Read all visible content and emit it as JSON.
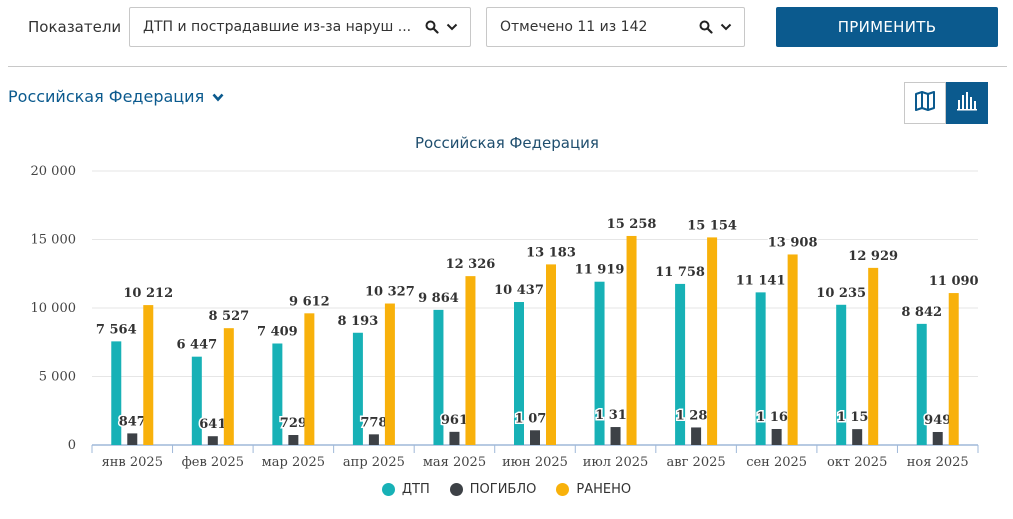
{
  "filters": {
    "indicators_label": "Показатели",
    "indicator_value": "ДТП и пострадавшие из-за наруш ...",
    "selection_value": "Отмечено 11 из 142",
    "apply_label": "ПРИМЕНИТЬ"
  },
  "region": {
    "label": "Российская Федерация"
  },
  "view_toggle": {
    "map_icon": "map-icon",
    "bar_icon": "bar-chart-icon",
    "active": "bar"
  },
  "colors": {
    "dtp": "#17b1b6",
    "pogiblo": "#3d4146",
    "raneno": "#f8b10b",
    "accent": "#0b5a8e"
  },
  "chart_data": {
    "type": "bar",
    "title": "Российская Федерация",
    "categories": [
      "янв 2025",
      "фев 2025",
      "мар 2025",
      "апр 2025",
      "мая 2025",
      "июн 2025",
      "июл 2025",
      "авг 2025",
      "сен 2025",
      "окт 2025",
      "ноя 2025"
    ],
    "series": [
      {
        "name": "ДТП",
        "values": [
          7564,
          6447,
          7409,
          8193,
          9864,
          10437,
          11919,
          11758,
          11141,
          10235,
          8842
        ]
      },
      {
        "name": "ПОГИБЛО",
        "values": [
          847,
          641,
          729,
          778,
          961,
          1074,
          1310,
          1281,
          1168,
          1158,
          949
        ]
      },
      {
        "name": "РАНЕНО",
        "values": [
          10212,
          8527,
          9612,
          10327,
          12326,
          13183,
          15258,
          15154,
          13908,
          12929,
          11090
        ]
      }
    ],
    "ylim": [
      0,
      20000
    ],
    "yticks": [
      0,
      5000,
      10000,
      15000,
      20000
    ],
    "ytick_labels": [
      "0",
      "5 000",
      "10 000",
      "15 000",
      "20 000"
    ],
    "grid": true,
    "legend_position": "bottom-center"
  }
}
